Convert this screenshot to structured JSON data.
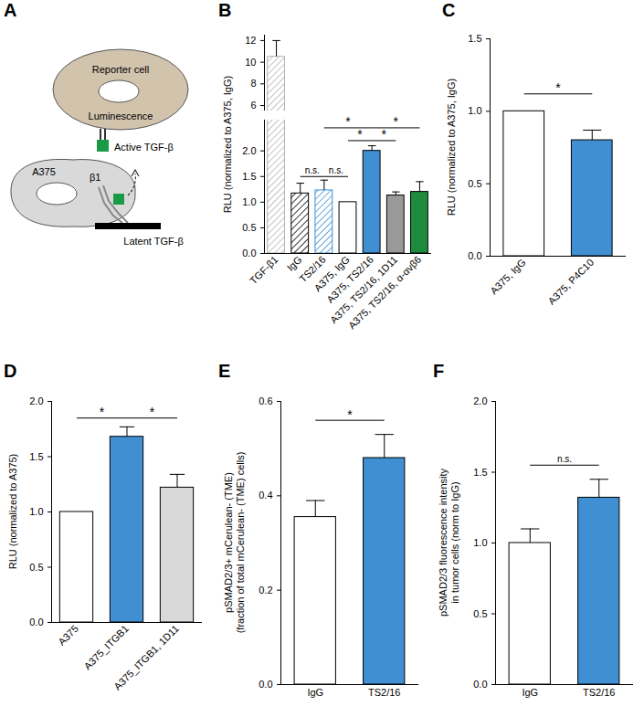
{
  "diagram": {
    "title": "A",
    "labels": {
      "reporter": "Reporter cell",
      "luminescence": "Luminescence",
      "active": "Active TGF-β",
      "tumor": "A375",
      "integrin": "β1",
      "latent": "Latent TGF-β"
    }
  },
  "chart_data": [
    {
      "title": "B",
      "type": "bar",
      "categories": [
        "TGF-β1",
        "IgG",
        "TS2/16",
        "A375, IgG",
        "A375, TS2/16",
        "A375, TS2/16, 1D11",
        "A375, TS2/16, α-αvβ6"
      ],
      "values": [
        10.5,
        1.17,
        1.23,
        1.0,
        2.0,
        1.13,
        1.2
      ],
      "errors": [
        1.5,
        0.2,
        0.2,
        0,
        0.1,
        0.07,
        0.2
      ],
      "colors": [
        "#b3b3b3",
        "#000000",
        "#3f8fd2",
        "#ffffff",
        "#3f8fd2",
        "#999999",
        "#1e8c3c"
      ],
      "hatched": [
        true,
        true,
        true,
        false,
        false,
        false,
        false
      ],
      "y_label": "RLU (normalized to A375, IgG)",
      "segments": [
        {
          "ylim": [
            5.5,
            12.5
          ],
          "yticks": [
            6,
            8,
            10,
            12
          ]
        },
        {
          "ylim": [
            0,
            2.6
          ],
          "yticks": [
            {
              "value": 0,
              "label": "0.0"
            },
            {
              "value": 0.5,
              "label": "0.5"
            },
            {
              "value": 1,
              "label": "1.0"
            },
            {
              "value": 1.5,
              "label": "1.5"
            },
            {
              "value": 2,
              "label": "2.0"
            }
          ]
        }
      ],
      "annotations": [
        {
          "from": 1,
          "to": 2,
          "y": 1.5,
          "label": "n.s."
        },
        {
          "from": 2,
          "to": 3,
          "y": 1.5,
          "label": "n.s."
        },
        {
          "from": 3,
          "to": 4,
          "y": 2.2,
          "label": "*"
        },
        {
          "from": 2,
          "to": 4,
          "y": 2.45,
          "label": "*"
        },
        {
          "from": 4,
          "to": 5,
          "y": 2.2,
          "label": "*"
        },
        {
          "from": 4,
          "to": 6,
          "y": 2.45,
          "label": "*"
        }
      ]
    },
    {
      "title": "C",
      "type": "bar",
      "categories": [
        "A375, IgG",
        "A375, P4C10"
      ],
      "values": [
        1.0,
        0.8
      ],
      "errors": [
        0,
        0.07
      ],
      "colors": [
        "#ffffff",
        "#3f8fd2"
      ],
      "y_label": "RLU (normalized to A375, IgG)",
      "ylim": [
        0,
        1.5
      ],
      "yticks": [
        {
          "value": 0,
          "label": "0.0"
        },
        {
          "value": 0.5,
          "label": "0.5"
        },
        {
          "value": 1,
          "label": "1.0"
        },
        {
          "value": 1.5,
          "label": "1.5"
        }
      ],
      "annotations": [
        {
          "from": 0,
          "to": 1,
          "y": 1.12,
          "label": "*"
        }
      ]
    },
    {
      "title": "D",
      "type": "bar",
      "categories": [
        "A375",
        "A375_ITGB1",
        "A375_ITGB1, 1D11"
      ],
      "values": [
        1.0,
        1.68,
        1.22
      ],
      "errors": [
        0,
        0.09,
        0.12
      ],
      "colors": [
        "#ffffff",
        "#3f8fd2",
        "#d9d9d9"
      ],
      "y_label": "RLU (normalized to A375)",
      "ylim": [
        0,
        2
      ],
      "yticks": [
        {
          "value": 0,
          "label": "0.0"
        },
        {
          "value": 0.5,
          "label": "0.5"
        },
        {
          "value": 1,
          "label": "1.0"
        },
        {
          "value": 1.5,
          "label": "1.5"
        },
        {
          "value": 2,
          "label": "2.0"
        }
      ],
      "annotations": [
        {
          "from": 0,
          "to": 1,
          "y": 1.85,
          "label": "*"
        },
        {
          "from": 1,
          "to": 2,
          "y": 1.85,
          "label": "*"
        }
      ]
    },
    {
      "title": "E",
      "type": "bar",
      "categories": [
        "IgG",
        "TS2/16"
      ],
      "values": [
        0.355,
        0.48
      ],
      "errors": [
        0.035,
        0.05
      ],
      "colors": [
        "#ffffff",
        "#3f8fd2"
      ],
      "y_label": "pSMAD2/3+ mCerulean- (TME)\n(fraction of total mCerulean- (TME) cells)",
      "ylim": [
        0,
        0.6
      ],
      "yticks": [
        {
          "value": 0,
          "label": "0.0"
        },
        {
          "value": 0.2,
          "label": "0.2"
        },
        {
          "value": 0.4,
          "label": "0.4"
        },
        {
          "value": 0.6,
          "label": "0.6"
        }
      ],
      "annotations": [
        {
          "from": 0,
          "to": 1,
          "y": 0.56,
          "label": "*"
        }
      ]
    },
    {
      "title": "F",
      "type": "bar",
      "categories": [
        "IgG",
        "TS2/16"
      ],
      "values": [
        1.0,
        1.32
      ],
      "errors": [
        0.1,
        0.13
      ],
      "colors": [
        "#ffffff",
        "#3f8fd2"
      ],
      "y_label": "pSMAD2/3 fluorescence intensity\nin tumor cells (norm to IgG)",
      "ylim": [
        0,
        2
      ],
      "yticks": [
        {
          "value": 0,
          "label": "0.0"
        },
        {
          "value": 0.5,
          "label": "0.5"
        },
        {
          "value": 1,
          "label": "1.0"
        },
        {
          "value": 1.5,
          "label": "1.5"
        },
        {
          "value": 2,
          "label": "2.0"
        }
      ],
      "annotations": [
        {
          "from": 0,
          "to": 1,
          "y": 1.55,
          "label": "n.s."
        }
      ]
    }
  ]
}
